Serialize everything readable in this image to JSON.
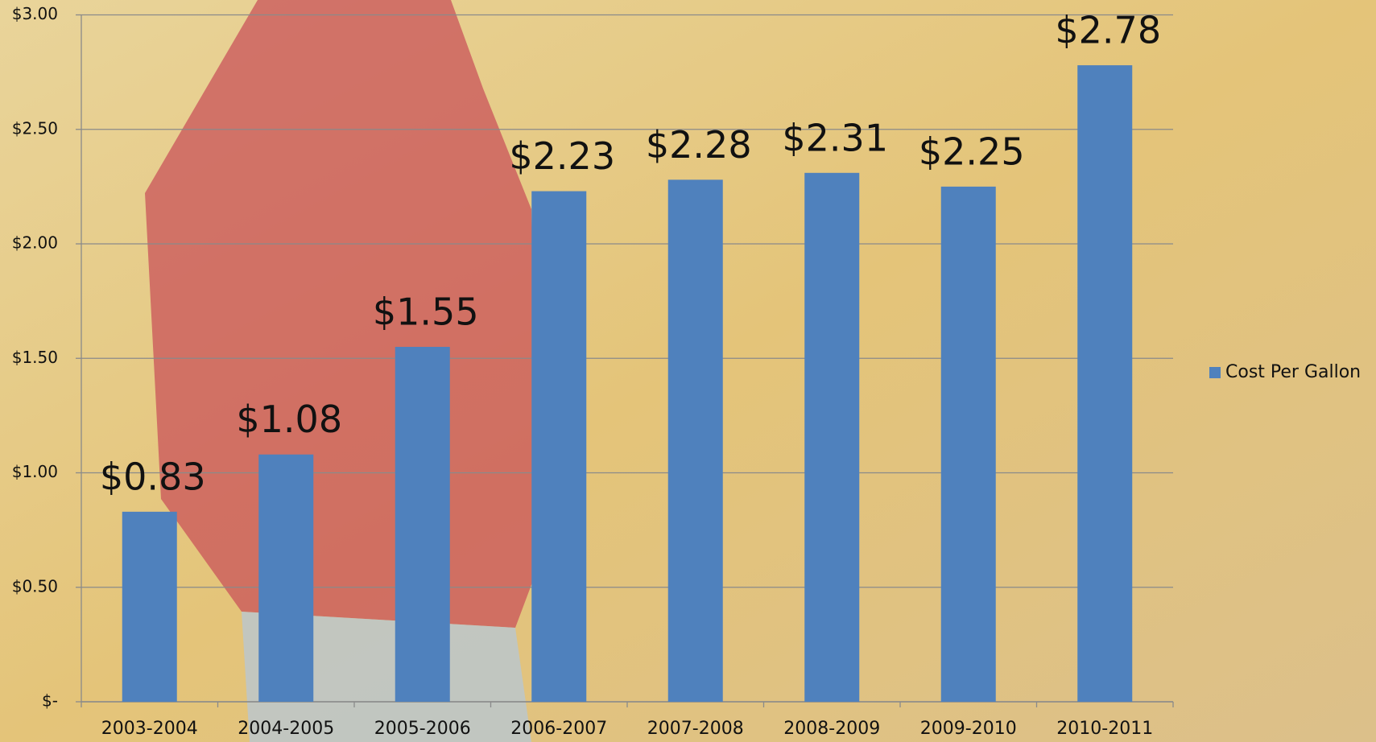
{
  "chart_data": {
    "type": "bar",
    "categories": [
      "2003-2004",
      "2004-2005",
      "2005-2006",
      "2006-2007",
      "2007-2008",
      "2008-2009",
      "2009-2010",
      "2010-2011"
    ],
    "series": [
      {
        "name": "Cost Per Gallon",
        "color": "#4f81bd",
        "values": [
          0.83,
          1.08,
          1.55,
          2.23,
          2.28,
          2.31,
          2.25,
          2.78
        ],
        "value_labels": [
          "$0.83",
          "$1.08",
          "$1.55",
          "$2.23",
          "$2.28",
          "$2.31",
          "$2.25",
          "$2.78"
        ]
      }
    ],
    "ylim": [
      0,
      3
    ],
    "yticks": [
      {
        "value": 0,
        "label": "$-"
      },
      {
        "value": 0.5,
        "label": "$0.50"
      },
      {
        "value": 1,
        "label": "$1.00"
      },
      {
        "value": 1.5,
        "label": "$1.50"
      },
      {
        "value": 2,
        "label": "$2.00"
      },
      {
        "value": 2.5,
        "label": "$2.50"
      },
      {
        "value": 3,
        "label": "$3.00"
      }
    ],
    "grid": true,
    "legend": "right"
  }
}
